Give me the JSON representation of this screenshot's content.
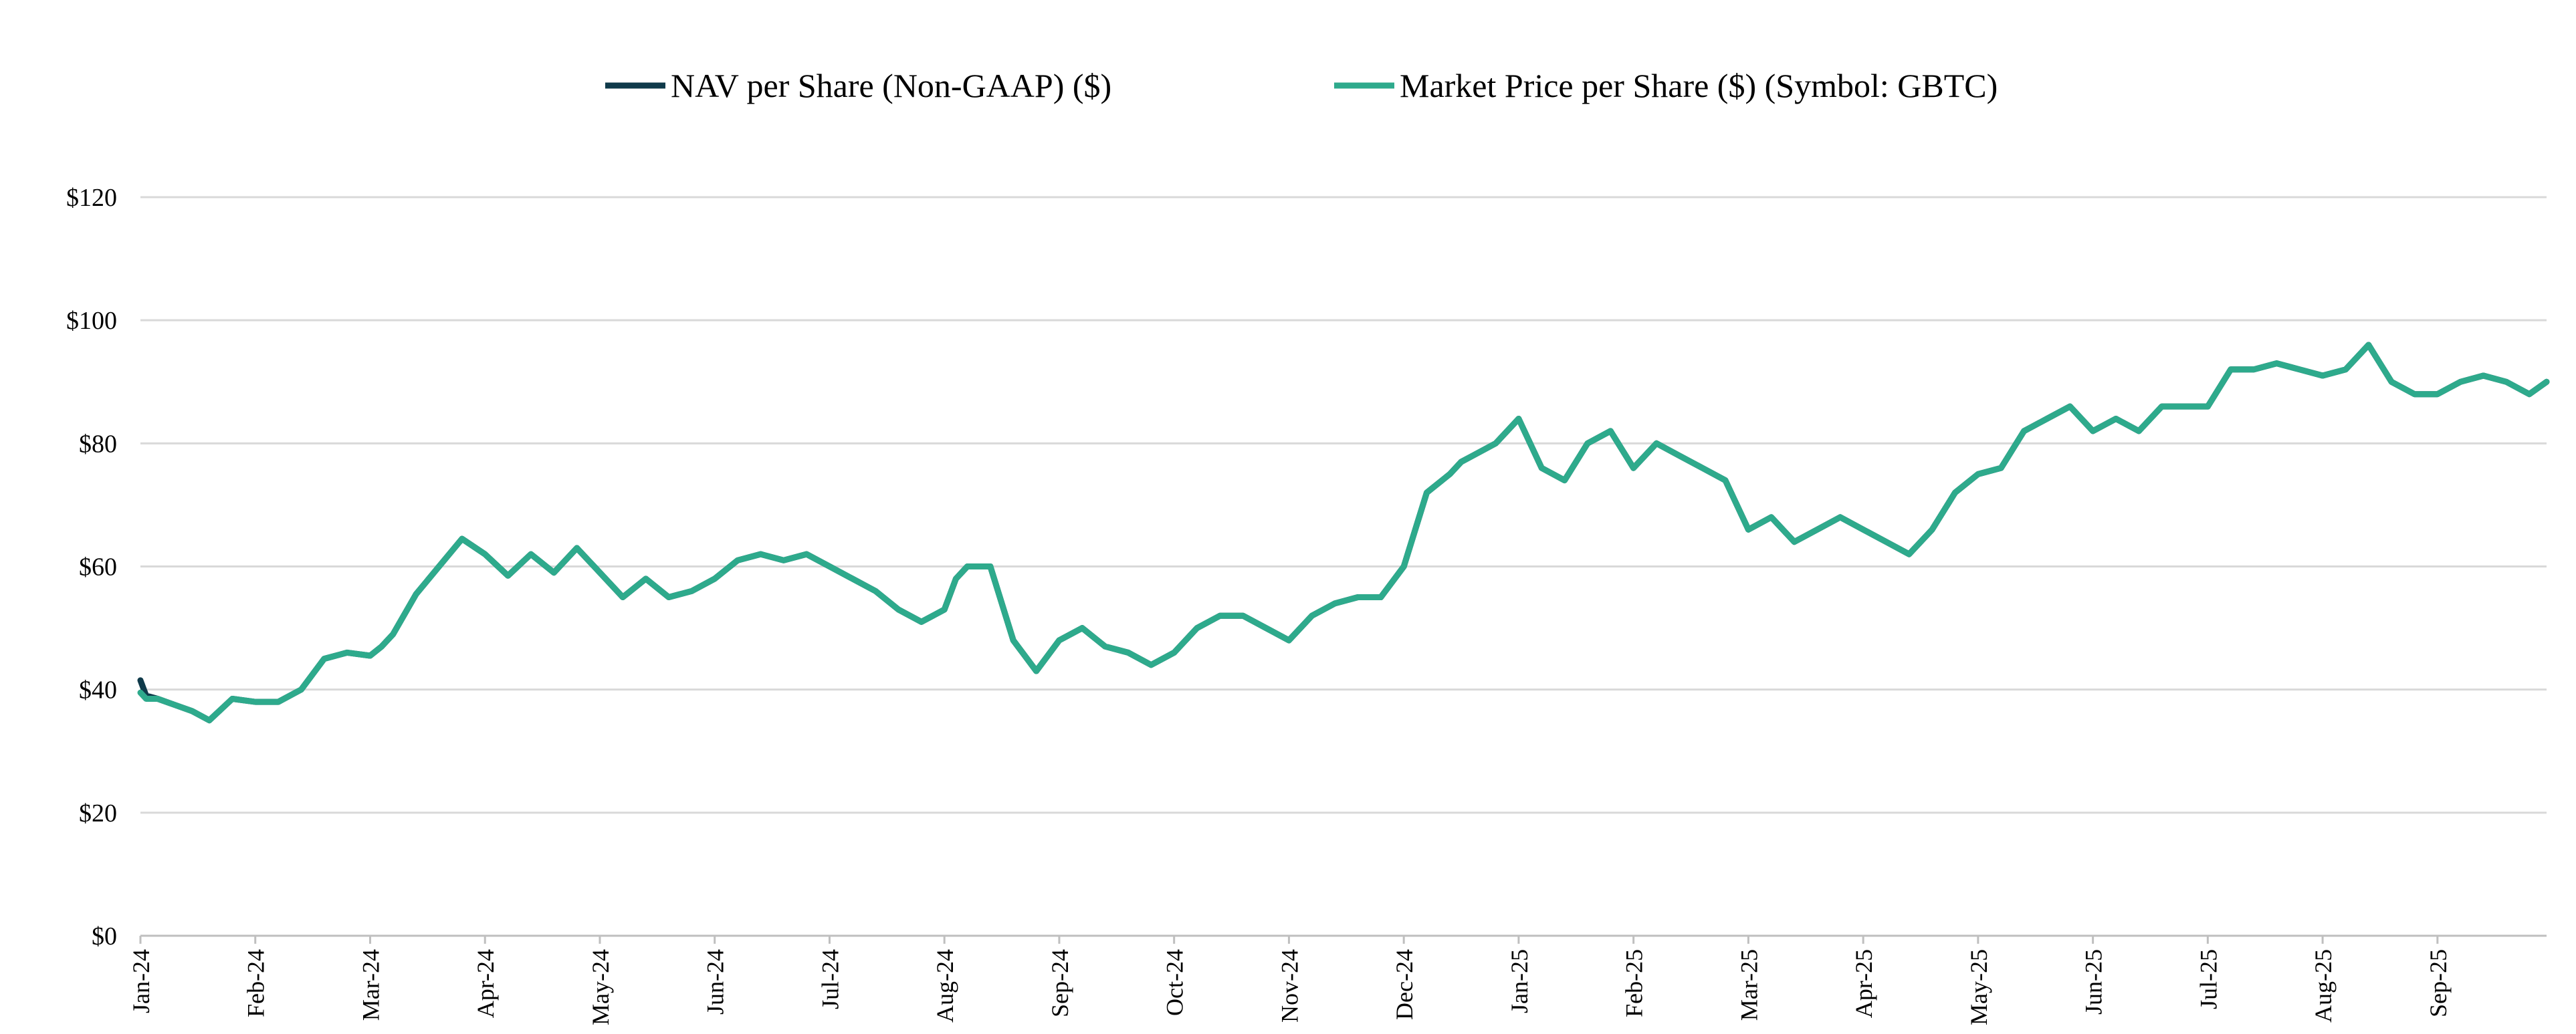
{
  "chart_data": {
    "type": "line",
    "title": "",
    "xlabel": "",
    "ylabel": "",
    "ylim": [
      0,
      120
    ],
    "grid": true,
    "legend_position": "top-center",
    "y_ticks": [
      "$0",
      "$20",
      "$40",
      "$60",
      "$80",
      "$100",
      "$120"
    ],
    "y_tick_values": [
      0,
      20,
      40,
      60,
      80,
      100,
      120
    ],
    "categories": [
      "Jan-24",
      "Feb-24",
      "Mar-24",
      "Apr-24",
      "May-24",
      "Jun-24",
      "Jul-24",
      "Aug-24",
      "Sep-24",
      "Oct-24",
      "Nov-24",
      "Dec-24",
      "Jan-25",
      "Feb-25",
      "Mar-25",
      "Apr-25",
      "May-25",
      "Jun-25",
      "Jul-25",
      "Aug-25",
      "Sep-25"
    ],
    "x_range": [
      0,
      20.95
    ],
    "series": [
      {
        "name": "NAV per Share (Non-GAAP) ($)",
        "color": "#0f3a4a",
        "x": [
          0,
          0.05,
          0.15,
          0.3,
          0.45,
          0.6,
          0.8,
          1.0,
          1.2,
          1.4,
          1.6,
          1.8,
          2.0,
          2.1,
          2.2,
          2.4,
          2.6,
          2.8,
          3.0,
          3.2,
          3.4,
          3.6,
          3.8,
          4.0,
          4.2,
          4.4,
          4.6,
          4.8,
          5.0,
          5.2,
          5.4,
          5.6,
          5.8,
          6.0,
          6.2,
          6.4,
          6.6,
          6.8,
          7.0,
          7.1,
          7.2,
          7.4,
          7.6,
          7.8,
          8.0,
          8.2,
          8.4,
          8.6,
          8.8,
          9.0,
          9.2,
          9.4,
          9.6,
          9.8,
          10.0,
          10.2,
          10.4,
          10.6,
          10.8,
          11.0,
          11.2,
          11.4,
          11.5,
          11.6,
          11.8,
          12.0,
          12.2,
          12.4,
          12.6,
          12.8,
          13.0,
          13.2,
          13.4,
          13.6,
          13.8,
          14.0,
          14.2,
          14.4,
          14.6,
          14.8,
          15.0,
          15.2,
          15.4,
          15.6,
          15.8,
          16.0,
          16.2,
          16.4,
          16.6,
          16.8,
          17.0,
          17.2,
          17.4,
          17.6,
          17.8,
          18.0,
          18.2,
          18.4,
          18.6,
          18.8,
          19.0,
          19.2,
          19.4,
          19.6,
          19.8,
          20.0,
          20.2,
          20.4,
          20.6,
          20.8,
          20.95
        ],
        "values": [
          41.5,
          39,
          38.5,
          37.5,
          36.5,
          35,
          38.5,
          38,
          38,
          40,
          45,
          46,
          45.5,
          47,
          49,
          55.5,
          60,
          64.5,
          62,
          58.5,
          62,
          59,
          63,
          59,
          55,
          58,
          55,
          56,
          58,
          61,
          62,
          61,
          62,
          60,
          58,
          56,
          53,
          51,
          53,
          58,
          60,
          60,
          48,
          43,
          48,
          50,
          47,
          46,
          44,
          46,
          50,
          52,
          52,
          50,
          48,
          52,
          54,
          55,
          55,
          60,
          72,
          75,
          77,
          78,
          80,
          84,
          76,
          74,
          80,
          82,
          76,
          80,
          78,
          76,
          74,
          66,
          68,
          64,
          66,
          68,
          66,
          64,
          62,
          66,
          72,
          75,
          76,
          82,
          84,
          86,
          82,
          84,
          82,
          86,
          86,
          86,
          92,
          92,
          93,
          92,
          91,
          92,
          96,
          90,
          88,
          88,
          90,
          91,
          90,
          88,
          90
        ]
      },
      {
        "name": "Market Price per Share ($) (Symbol: GBTC)",
        "color": "#2eaa8c",
        "x": [
          0,
          0.05,
          0.15,
          0.3,
          0.45,
          0.6,
          0.8,
          1.0,
          1.2,
          1.4,
          1.6,
          1.8,
          2.0,
          2.1,
          2.2,
          2.4,
          2.6,
          2.8,
          3.0,
          3.2,
          3.4,
          3.6,
          3.8,
          4.0,
          4.2,
          4.4,
          4.6,
          4.8,
          5.0,
          5.2,
          5.4,
          5.6,
          5.8,
          6.0,
          6.2,
          6.4,
          6.6,
          6.8,
          7.0,
          7.1,
          7.2,
          7.4,
          7.6,
          7.8,
          8.0,
          8.2,
          8.4,
          8.6,
          8.8,
          9.0,
          9.2,
          9.4,
          9.6,
          9.8,
          10.0,
          10.2,
          10.4,
          10.6,
          10.8,
          11.0,
          11.2,
          11.4,
          11.5,
          11.6,
          11.8,
          12.0,
          12.2,
          12.4,
          12.6,
          12.8,
          13.0,
          13.2,
          13.4,
          13.6,
          13.8,
          14.0,
          14.2,
          14.4,
          14.6,
          14.8,
          15.0,
          15.2,
          15.4,
          15.6,
          15.8,
          16.0,
          16.2,
          16.4,
          16.6,
          16.8,
          17.0,
          17.2,
          17.4,
          17.6,
          17.8,
          18.0,
          18.2,
          18.4,
          18.6,
          18.8,
          19.0,
          19.2,
          19.4,
          19.6,
          19.8,
          20.0,
          20.2,
          20.4,
          20.6,
          20.8,
          20.95
        ],
        "values": [
          39.5,
          38.5,
          38.5,
          37.5,
          36.5,
          35,
          38.5,
          38,
          38,
          40,
          45,
          46,
          45.5,
          47,
          49,
          55.5,
          60,
          64.5,
          62,
          58.5,
          62,
          59,
          63,
          59,
          55,
          58,
          55,
          56,
          58,
          61,
          62,
          61,
          62,
          60,
          58,
          56,
          53,
          51,
          53,
          58,
          60,
          60,
          48,
          43,
          48,
          50,
          47,
          46,
          44,
          46,
          50,
          52,
          52,
          50,
          48,
          52,
          54,
          55,
          55,
          60,
          72,
          75,
          77,
          78,
          80,
          84,
          76,
          74,
          80,
          82,
          76,
          80,
          78,
          76,
          74,
          66,
          68,
          64,
          66,
          68,
          66,
          64,
          62,
          66,
          72,
          75,
          76,
          82,
          84,
          86,
          82,
          84,
          82,
          86,
          86,
          86,
          92,
          92,
          93,
          92,
          91,
          92,
          96,
          90,
          88,
          88,
          90,
          91,
          90,
          88,
          90
        ]
      }
    ]
  }
}
